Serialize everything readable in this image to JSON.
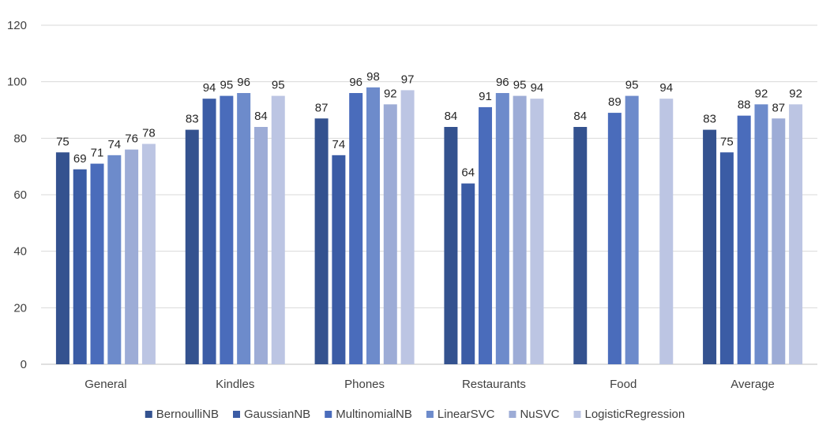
{
  "chart_data": {
    "type": "bar",
    "title": "",
    "xlabel": "",
    "ylabel": "",
    "ylim": [
      0,
      120
    ],
    "yticks": [
      0,
      20,
      40,
      60,
      80,
      100,
      120
    ],
    "grid": true,
    "legend_position": "bottom",
    "categories": [
      "General",
      "Kindles",
      "Phones",
      "Restaurants",
      "Food",
      "Average"
    ],
    "series": [
      {
        "name": "BernoulliNB",
        "color": "#34528f",
        "values": [
          75,
          83,
          87,
          84,
          84,
          83
        ]
      },
      {
        "name": "GaussianNB",
        "color": "#3b5ca5",
        "values": [
          69,
          94,
          74,
          64,
          null,
          75
        ]
      },
      {
        "name": "MultinomialNB",
        "color": "#4a6cbb",
        "values": [
          71,
          95,
          96,
          91,
          89,
          88
        ]
      },
      {
        "name": "LinearSVC",
        "color": "#6d8bcb",
        "values": [
          74,
          96,
          98,
          96,
          95,
          92
        ]
      },
      {
        "name": "NuSVC",
        "color": "#9dacd6",
        "values": [
          76,
          84,
          92,
          95,
          null,
          87
        ]
      },
      {
        "name": "LogisticRegression",
        "color": "#bcc5e3",
        "values": [
          78,
          95,
          97,
          94,
          94,
          92
        ]
      }
    ]
  }
}
